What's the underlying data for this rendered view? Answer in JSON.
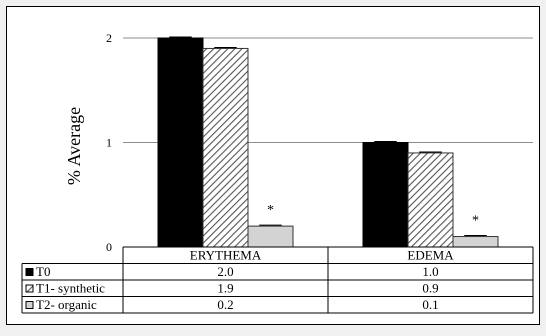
{
  "chart_data": {
    "type": "bar",
    "ylabel": "% Average",
    "ylim": [
      0,
      2
    ],
    "yticks": [
      0,
      1,
      2
    ],
    "grid": true,
    "categories": [
      "ERYTHEMA",
      "EDEMA"
    ],
    "series": [
      {
        "name": "T0",
        "values": [
          2.0,
          1.0
        ],
        "table_values": [
          "2.0",
          "1.0"
        ],
        "pattern": "solid-black"
      },
      {
        "name": "T1- synthetic",
        "values": [
          1.9,
          0.9
        ],
        "table_values": [
          "1.9",
          "0.9"
        ],
        "pattern": "diagonal-hatch"
      },
      {
        "name": "T2- organic",
        "values": [
          0.2,
          0.1
        ],
        "table_values": [
          "0.2",
          "0.1"
        ],
        "pattern": "light-gray"
      }
    ],
    "annotations": [
      {
        "series": "T2- organic",
        "category": "ERYTHEMA",
        "text": "*"
      },
      {
        "series": "T2- organic",
        "category": "EDEMA",
        "text": "*"
      }
    ],
    "colors": {
      "t0": "#000000",
      "t1": "#ffffff",
      "t1_hatch": "#555555",
      "t2": "#d3d3d3",
      "grid": "#8c8c8c"
    }
  }
}
